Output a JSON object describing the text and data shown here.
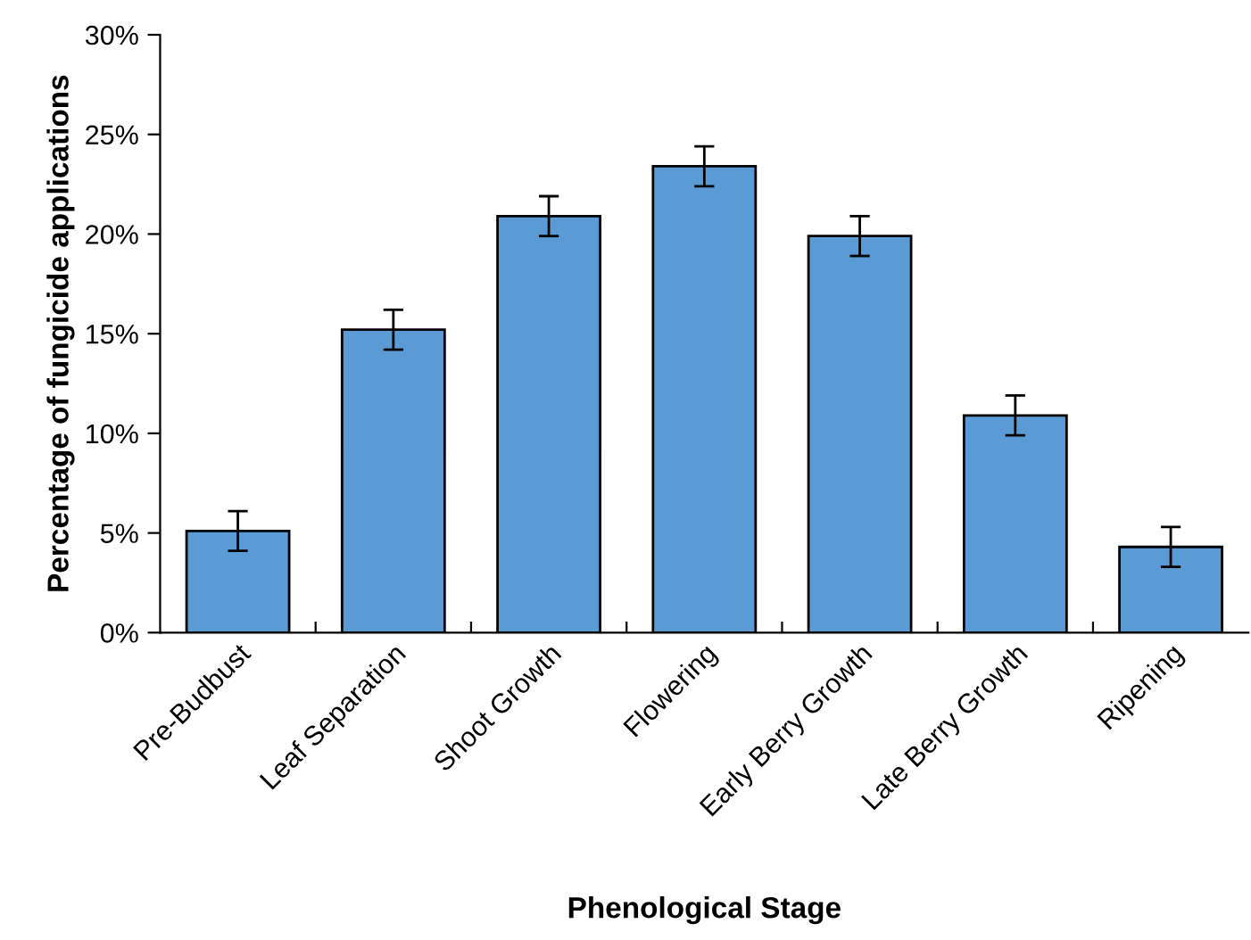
{
  "chart_data": {
    "type": "bar",
    "xlabel": "Phenological Stage",
    "ylabel": "Percentage of fungicide applications",
    "categories": [
      "Pre-Budbust",
      "Leaf Separation",
      "Shoot Growth",
      "Flowering",
      "Early Berry Growth",
      "Late Berry Growth",
      "Ripening"
    ],
    "values": [
      5.1,
      15.2,
      20.9,
      23.4,
      19.9,
      10.9,
      4.3
    ],
    "errors": [
      1.0,
      1.0,
      1.0,
      1.0,
      1.0,
      1.0,
      1.0
    ],
    "color": "#5b9bd5",
    "ylim": [
      0,
      30
    ],
    "yticks": [
      {
        "value": 0,
        "label": "0%"
      },
      {
        "value": 5,
        "label": "5%"
      },
      {
        "value": 10,
        "label": "10%"
      },
      {
        "value": 15,
        "label": "15%"
      },
      {
        "value": 20,
        "label": "20%"
      },
      {
        "value": 25,
        "label": "25%"
      },
      {
        "value": 30,
        "label": "30%"
      }
    ],
    "grid": false,
    "legend": false
  }
}
